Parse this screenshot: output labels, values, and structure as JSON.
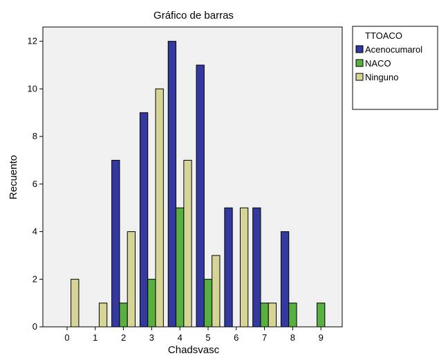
{
  "chart_data": {
    "type": "bar",
    "title": "Gráfico de barras",
    "xlabel": "Chadsvasc",
    "ylabel": "Recuento",
    "categories": [
      "0",
      "1",
      "2",
      "3",
      "4",
      "5",
      "6",
      "7",
      "8",
      "9"
    ],
    "series": [
      {
        "name": "Acenocumarol",
        "color": "#33399e",
        "values": [
          0,
          0,
          7,
          9,
          12,
          11,
          5,
          5,
          4,
          0
        ]
      },
      {
        "name": "NACO",
        "color": "#57b040",
        "values": [
          0,
          0,
          1,
          2,
          5,
          2,
          0,
          1,
          1,
          1
        ]
      },
      {
        "name": "Ninguno",
        "color": "#d6d596",
        "values": [
          2,
          1,
          4,
          10,
          7,
          3,
          5,
          1,
          0,
          0
        ]
      }
    ],
    "ylim": [
      0,
      12.6
    ],
    "yticks": [
      0,
      2,
      4,
      6,
      8,
      10,
      12
    ],
    "grid": false,
    "legend": {
      "title": "TTOACO",
      "placement": "top-right outside"
    }
  }
}
